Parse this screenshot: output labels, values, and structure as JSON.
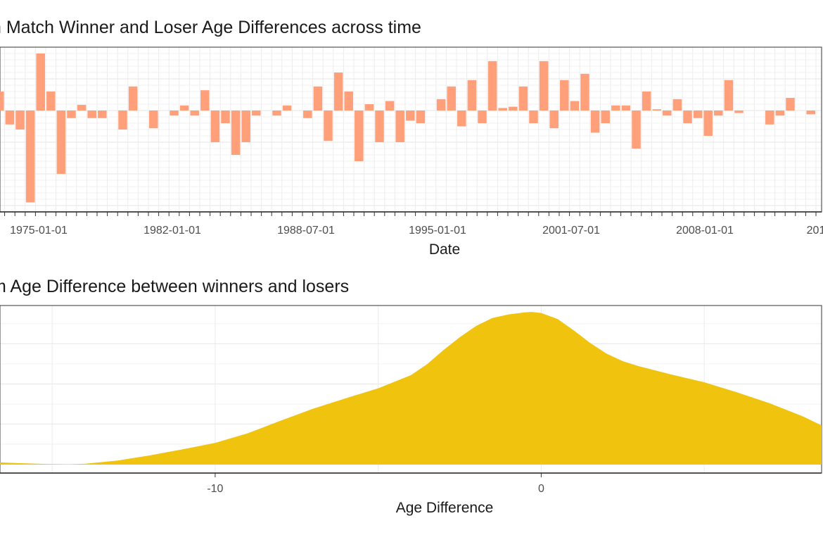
{
  "chart_data": [
    {
      "type": "bar",
      "title": "n Match Winner and Loser Age Differences across time",
      "xlabel": "Date",
      "ylabel": "",
      "x_tick_labels": [
        "1975-01-01",
        "1982-01-01",
        "1988-07-01",
        "1995-01-01",
        "2001-07-01",
        "2008-01-01",
        "201"
      ],
      "ylim": [
        -1.6,
        1.0
      ],
      "grid": true,
      "bar_color": "#FFA07A",
      "values": [
        0.3,
        -0.22,
        -0.3,
        -1.45,
        0.9,
        0.3,
        -1.0,
        -0.12,
        0.09,
        -0.12,
        -0.12,
        0.0,
        -0.3,
        0.38,
        0.0,
        -0.28,
        0.0,
        -0.08,
        0.08,
        -0.08,
        0.32,
        -0.5,
        -0.2,
        -0.7,
        -0.5,
        -0.08,
        0.0,
        -0.08,
        0.08,
        0.0,
        -0.12,
        0.38,
        -0.48,
        0.6,
        0.3,
        -0.8,
        0.1,
        -0.5,
        0.15,
        -0.5,
        -0.16,
        -0.2,
        0.0,
        0.18,
        0.38,
        -0.25,
        0.48,
        -0.2,
        0.78,
        0.04,
        0.06,
        0.38,
        -0.2,
        0.78,
        -0.28,
        0.48,
        0.15,
        0.58,
        -0.35,
        -0.2,
        0.08,
        0.08,
        -0.6,
        0.3,
        0.02,
        -0.08,
        0.18,
        -0.2,
        -0.12,
        -0.4,
        -0.08,
        0.48,
        -0.04,
        0.0,
        0.0,
        -0.22,
        -0.08,
        0.2,
        0.0,
        -0.06
      ]
    },
    {
      "type": "area",
      "title": "m Age Difference between winners and losers",
      "xlabel": "Age Difference",
      "ylabel": "",
      "x_tick_labels": [
        "-10",
        "0"
      ],
      "x_ticks": [
        -10,
        0
      ],
      "xlim": [
        -16.6,
        8.6
      ],
      "ylim": [
        0,
        0.075
      ],
      "grid": true,
      "fill_color": "#F0C30F",
      "x": [
        -16.6,
        -16,
        -15,
        -14.5,
        -14,
        -13,
        -12,
        -11,
        -10,
        -9,
        -8,
        -7,
        -6,
        -5,
        -4,
        -3.5,
        -3,
        -2.5,
        -2,
        -1.5,
        -1,
        -0.5,
        -0.3,
        0,
        0.5,
        1,
        1.5,
        2,
        2.5,
        3,
        4,
        5,
        6,
        7,
        8,
        8.6
      ],
      "y": [
        0.0011,
        0.0007,
        0.0002,
        0.0001,
        0.0004,
        0.002,
        0.0046,
        0.0076,
        0.0108,
        0.0156,
        0.0218,
        0.0278,
        0.033,
        0.038,
        0.0445,
        0.05,
        0.057,
        0.0634,
        0.069,
        0.073,
        0.0748,
        0.0758,
        0.076,
        0.0755,
        0.0725,
        0.0668,
        0.0606,
        0.0553,
        0.0515,
        0.049,
        0.0448,
        0.041,
        0.036,
        0.0306,
        0.0242,
        0.0195
      ]
    }
  ]
}
